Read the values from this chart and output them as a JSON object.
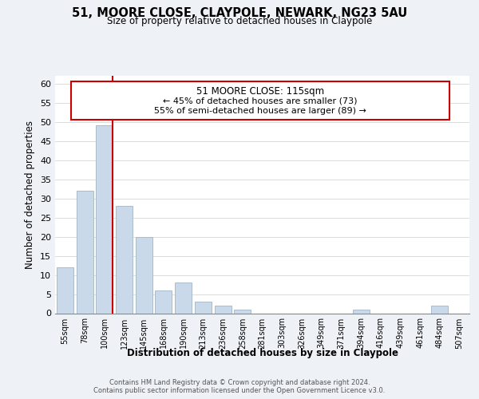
{
  "title1": "51, MOORE CLOSE, CLAYPOLE, NEWARK, NG23 5AU",
  "title2": "Size of property relative to detached houses in Claypole",
  "xlabel": "Distribution of detached houses by size in Claypole",
  "ylabel": "Number of detached properties",
  "bin_labels": [
    "55sqm",
    "78sqm",
    "100sqm",
    "123sqm",
    "145sqm",
    "168sqm",
    "190sqm",
    "213sqm",
    "236sqm",
    "258sqm",
    "281sqm",
    "303sqm",
    "326sqm",
    "349sqm",
    "371sqm",
    "394sqm",
    "416sqm",
    "439sqm",
    "461sqm",
    "484sqm",
    "507sqm"
  ],
  "bar_heights": [
    12,
    32,
    49,
    28,
    20,
    6,
    8,
    3,
    2,
    1,
    0,
    0,
    0,
    0,
    0,
    1,
    0,
    0,
    0,
    2,
    0
  ],
  "bar_color": "#c9d9e9",
  "bar_edge_color": "#aabccc",
  "ylim": [
    0,
    62
  ],
  "yticks": [
    0,
    5,
    10,
    15,
    20,
    25,
    30,
    35,
    40,
    45,
    50,
    55,
    60
  ],
  "annotation_title": "51 MOORE CLOSE: 115sqm",
  "annotation_line1": "← 45% of detached houses are smaller (73)",
  "annotation_line2": "55% of semi-detached houses are larger (89) →",
  "annotation_box_color": "#ffffff",
  "annotation_border_color": "#cc0000",
  "property_line_color": "#cc0000",
  "footer1": "Contains HM Land Registry data © Crown copyright and database right 2024.",
  "footer2": "Contains public sector information licensed under the Open Government Licence v3.0.",
  "background_color": "#eef2f6",
  "plot_bg_color": "#ffffff",
  "grid_color": "#d0d8e0"
}
